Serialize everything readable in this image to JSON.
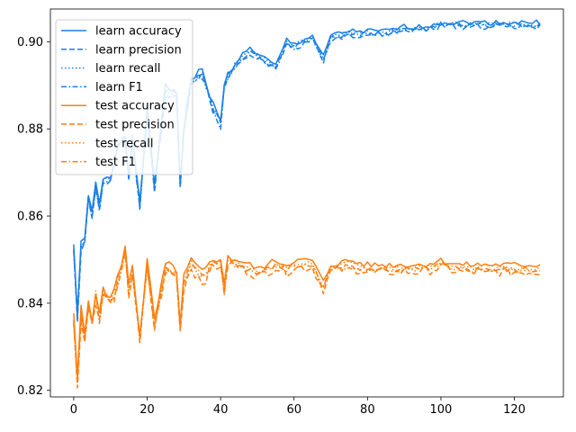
{
  "chart_data": {
    "type": "line",
    "title": "",
    "xlabel": "",
    "ylabel": "",
    "xlim": [
      -6.35,
      133.35
    ],
    "ylim": [
      0.8185,
      0.9075
    ],
    "xticks": [
      0,
      20,
      40,
      60,
      80,
      100,
      120
    ],
    "yticks": [
      0.82,
      0.84,
      0.86,
      0.88,
      0.9
    ],
    "ytick_labels": [
      "0.82",
      "0.84",
      "0.86",
      "0.88",
      "0.90"
    ],
    "grid": false,
    "legend_position": "top-left",
    "colors": {
      "learn": "#1a80e6",
      "test": "#ff7f0e"
    },
    "learn_anchors": {
      "x": [
        0,
        1,
        2,
        3,
        4,
        5,
        6,
        7,
        8,
        10,
        12,
        14,
        15,
        16,
        18,
        20,
        22,
        25,
        28,
        29,
        30,
        32,
        35,
        38,
        40,
        41,
        42,
        45,
        48,
        50,
        55,
        58,
        60,
        65,
        68,
        70,
        75,
        80,
        85,
        90,
        95,
        100,
        105,
        110,
        115,
        120,
        127
      ],
      "y": [
        0.853,
        0.837,
        0.853,
        0.854,
        0.865,
        0.86,
        0.867,
        0.862,
        0.868,
        0.868,
        0.876,
        0.878,
        0.869,
        0.878,
        0.862,
        0.884,
        0.867,
        0.889,
        0.888,
        0.867,
        0.88,
        0.891,
        0.893,
        0.885,
        0.881,
        0.89,
        0.892,
        0.896,
        0.898,
        0.897,
        0.894,
        0.9,
        0.899,
        0.901,
        0.896,
        0.901,
        0.902,
        0.902,
        0.902,
        0.903,
        0.903,
        0.904,
        0.904,
        0.904,
        0.904,
        0.904,
        0.904
      ]
    },
    "test_anchors": {
      "x": [
        0,
        1,
        2,
        3,
        4,
        5,
        6,
        7,
        8,
        10,
        12,
        14,
        15,
        16,
        18,
        20,
        22,
        25,
        28,
        29,
        30,
        32,
        35,
        38,
        40,
        41,
        42,
        45,
        48,
        50,
        55,
        58,
        60,
        65,
        68,
        70,
        75,
        80,
        85,
        90,
        95,
        100,
        105,
        110,
        115,
        120,
        127
      ],
      "y": [
        0.836,
        0.822,
        0.838,
        0.832,
        0.84,
        0.836,
        0.842,
        0.836,
        0.843,
        0.84,
        0.845,
        0.852,
        0.843,
        0.848,
        0.832,
        0.849,
        0.835,
        0.848,
        0.847,
        0.834,
        0.845,
        0.849,
        0.846,
        0.849,
        0.85,
        0.843,
        0.85,
        0.849,
        0.848,
        0.847,
        0.849,
        0.848,
        0.849,
        0.849,
        0.844,
        0.848,
        0.849,
        0.848,
        0.848,
        0.848,
        0.848,
        0.849,
        0.848,
        0.848,
        0.848,
        0.848,
        0.848
      ]
    },
    "series": [
      {
        "name": "learn accuracy",
        "group": "learn",
        "style": "solid",
        "offset": 0.0004,
        "jitter": 0.0012,
        "seed": 1
      },
      {
        "name": "learn precision",
        "group": "learn",
        "style": "dashed",
        "offset": -0.0004,
        "jitter": 0.0016,
        "seed": 2
      },
      {
        "name": "learn recall",
        "group": "learn",
        "style": "dotted",
        "offset": 0.0,
        "jitter": 0.0012,
        "seed": 3
      },
      {
        "name": "learn F1",
        "group": "learn",
        "style": "dashdot",
        "offset": -0.0002,
        "jitter": 0.0012,
        "seed": 4
      },
      {
        "name": "test accuracy",
        "group": "test",
        "style": "solid",
        "offset": 0.0008,
        "jitter": 0.0014,
        "seed": 5
      },
      {
        "name": "test precision",
        "group": "test",
        "style": "dashed",
        "offset": -0.0008,
        "jitter": 0.0022,
        "seed": 6
      },
      {
        "name": "test recall",
        "group": "test",
        "style": "dotted",
        "offset": 0.0,
        "jitter": 0.0014,
        "seed": 7
      },
      {
        "name": "test F1",
        "group": "test",
        "style": "dashdot",
        "offset": -0.0004,
        "jitter": 0.0014,
        "seed": 8
      }
    ]
  }
}
